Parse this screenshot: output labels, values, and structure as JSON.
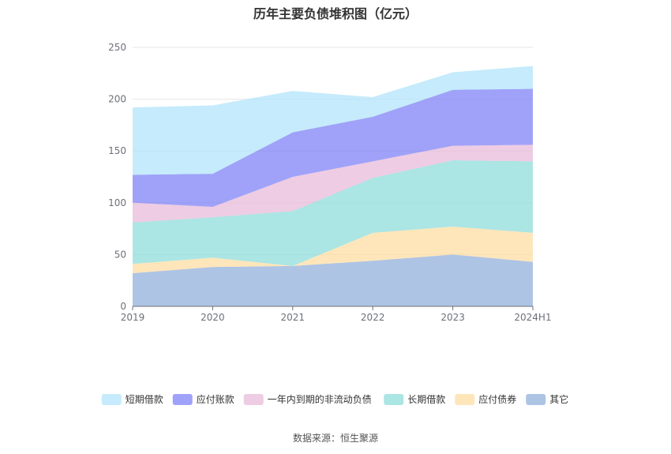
{
  "chart_data": {
    "type": "area",
    "stacked": true,
    "title": "历年主要负债堆积图（亿元）",
    "categories": [
      "2019",
      "2020",
      "2021",
      "2022",
      "2023",
      "2024H1"
    ],
    "ylim": [
      0,
      250
    ],
    "yticks": [
      0,
      50,
      100,
      150,
      200,
      250
    ],
    "grid": true,
    "legend_position": "bottom",
    "series": [
      {
        "name": "其它",
        "color": "#8fadd9",
        "values": [
          32,
          38,
          39,
          44,
          50,
          43
        ]
      },
      {
        "name": "应付债券",
        "color": "#ffdda0",
        "values": [
          9,
          9,
          0,
          27,
          27,
          28
        ]
      },
      {
        "name": "长期借款",
        "color": "#8adbd9",
        "values": [
          40,
          39,
          53,
          53,
          64,
          69
        ]
      },
      {
        "name": "一年内到期的非流动负债",
        "color": "#e8b8d8",
        "values": [
          19,
          10,
          33,
          16,
          14,
          16
        ]
      },
      {
        "name": "应付账款",
        "color": "#7a7ef5",
        "values": [
          27,
          32,
          43,
          43,
          54,
          54
        ]
      },
      {
        "name": "短期借款",
        "color": "#aee3fb",
        "values": [
          65,
          66,
          40,
          19,
          17,
          22
        ]
      }
    ],
    "legend_order": [
      "短期借款",
      "应付账款",
      "一年内到期的非流动负债",
      "长期借款",
      "应付债券",
      "其它"
    ]
  },
  "footer": {
    "source": "数据来源：恒生聚源"
  }
}
